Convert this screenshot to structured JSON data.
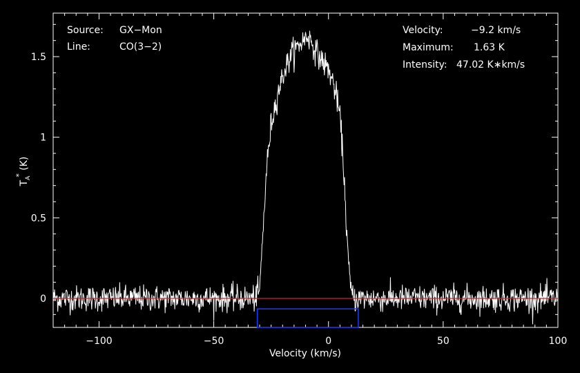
{
  "chart_data": {
    "type": "line",
    "xlabel": "Velocity (km/s)",
    "ylabel_main": "T",
    "ylabel_sub": "A",
    "ylabel_sup": "*",
    "ylabel_unit": " (K)",
    "xlim": [
      -120,
      100
    ],
    "ylim": [
      -0.18,
      1.77
    ],
    "xticks": [
      -100,
      -50,
      0,
      50,
      100
    ],
    "xtick_labels": [
      "−100",
      "−50",
      "0",
      "50",
      "100"
    ],
    "yticks": [
      0,
      0.5,
      1,
      1.5
    ],
    "ytick_labels": [
      "0",
      "0.5",
      "1",
      "1.5"
    ],
    "grid": false,
    "baseline": {
      "y": 0,
      "color": "#cc2222"
    },
    "window": {
      "x_start": -31,
      "x_end": 13,
      "y_bottom": -0.18,
      "y_top": -0.065,
      "color": "#1a3cff"
    },
    "series": [
      {
        "line_color": "#ffffff",
        "noise_rms": 0.04,
        "profile_points": [
          [
            -120,
            0
          ],
          [
            -32,
            0
          ],
          [
            -30,
            0.05
          ],
          [
            -29,
            0.3
          ],
          [
            -27,
            0.8
          ],
          [
            -25,
            1.08
          ],
          [
            -22,
            1.28
          ],
          [
            -19,
            1.42
          ],
          [
            -16,
            1.52
          ],
          [
            -13,
            1.57
          ],
          [
            -11,
            1.6
          ],
          [
            -9,
            1.63
          ],
          [
            -7,
            1.58
          ],
          [
            -5,
            1.52
          ],
          [
            -3,
            1.48
          ],
          [
            0,
            1.42
          ],
          [
            2,
            1.34
          ],
          [
            4,
            1.22
          ],
          [
            5,
            1.12
          ],
          [
            6,
            0.95
          ],
          [
            7,
            0.7
          ],
          [
            8,
            0.4
          ],
          [
            9,
            0.15
          ],
          [
            10,
            0.04
          ],
          [
            11,
            0
          ],
          [
            100,
            0
          ]
        ]
      }
    ]
  },
  "annotations": {
    "source_label": "Source:",
    "source_value": "GX−Mon",
    "line_label": "Line:",
    "line_value": "CO(3−2)",
    "velocity_label": "Velocity:",
    "velocity_value": "−9.2 km/s",
    "maximum_label": "Maximum:",
    "maximum_value": "1.63 K",
    "intensity_label": "Intensity:",
    "intensity_value": "47.02 K∗km/s"
  },
  "colors": {
    "background": "#000000",
    "axes": "#ffffff",
    "text": "#ffffff"
  }
}
